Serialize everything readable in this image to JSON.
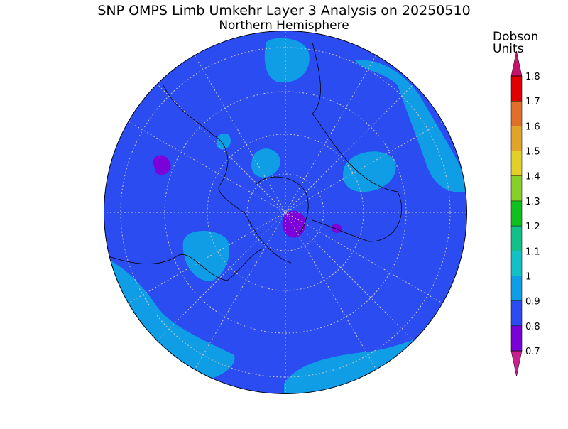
{
  "header": {
    "title": "SNP OMPS Limb Umkehr Layer 3 Analysis on 20250510",
    "subtitle": "Northern Hemisphere"
  },
  "colorbar": {
    "label": [
      "Dobson",
      "Units"
    ],
    "ticks": [
      0.7,
      0.8,
      0.9,
      1,
      1.1,
      1.2,
      1.3,
      1.4,
      1.5,
      1.6,
      1.7,
      1.8
    ],
    "colors": [
      "#c8208c",
      "#7c00d8",
      "#2b4cf0",
      "#0f9ee6",
      "#12c0c8",
      "#14c08a",
      "#10c020",
      "#88d028",
      "#e0d028",
      "#e0a428",
      "#e07028",
      "#e00000",
      "#c8106c"
    ]
  }
}
